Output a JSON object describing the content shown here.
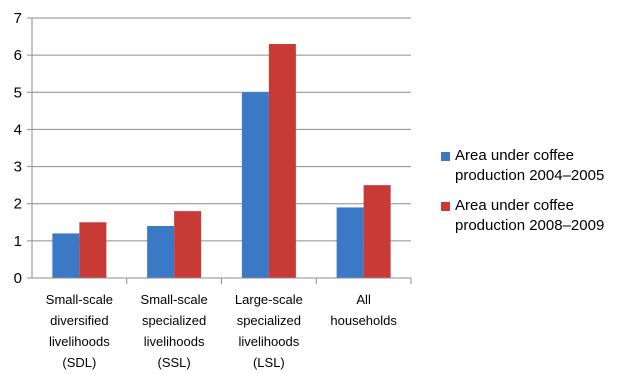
{
  "chart_data": {
    "type": "bar",
    "categories": [
      "Small-scale\ndiversified\nlivelihoods\n(SDL)",
      "Small-scale\nspecialized\nlivelihoods\n(SSL)",
      "Large-scale\nspecialized\nlivelihoods\n(LSL)",
      "All\nhouseholds"
    ],
    "series": [
      {
        "name": "Area under coffee\nproduction 2004–2005",
        "values": [
          1.2,
          1.4,
          5.0,
          1.9
        ],
        "color": "#3b78c6"
      },
      {
        "name": "Area under coffee\nproduction 2008–2009",
        "values": [
          1.5,
          1.8,
          6.3,
          2.5
        ],
        "color": "#c83a36"
      }
    ],
    "yticks": [
      "0",
      "1",
      "2",
      "3",
      "4",
      "5",
      "6",
      "7"
    ],
    "ylim": [
      0,
      7
    ],
    "title": "",
    "xlabel": "",
    "ylabel": "",
    "grid": true,
    "legend_position": "right"
  }
}
